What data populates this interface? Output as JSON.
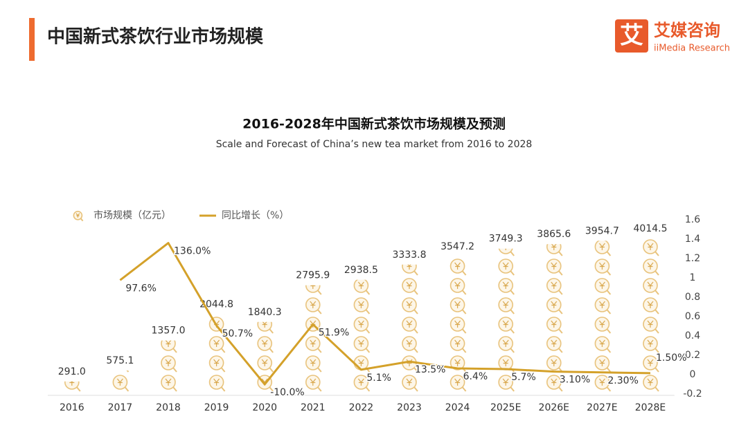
{
  "header": {
    "title": "中国新式茶饮行业市场规模",
    "logo_mark": "艾",
    "logo_name": "艾媒咨询",
    "logo_en": "iiMedia Research"
  },
  "chart_data": {
    "type": "bar_line",
    "title": "2016-2028年中国新式茶饮市场规模及预测",
    "subtitle": "Scale and Forecast of China’s new tea market from 2016 to 2028",
    "categories": [
      "2016",
      "2017",
      "2018",
      "2019",
      "2020",
      "2021",
      "2022",
      "2023",
      "2024",
      "2025E",
      "2026E",
      "2027E",
      "2028E"
    ],
    "series": [
      {
        "name": "市场规模（亿元）",
        "color": "#e8c27a",
        "type": "bar",
        "values": [
          291.0,
          575.1,
          1357.0,
          2044.8,
          1840.3,
          2795.9,
          2938.5,
          3333.8,
          3547.2,
          3749.3,
          3865.6,
          3954.7,
          4014.5
        ],
        "value_labels": [
          "291.0",
          "575.1",
          "1357.0",
          "2044.8",
          "1840.3",
          "2795.9",
          "2938.5",
          "3333.8",
          "3547.2",
          "3749.3",
          "3865.6",
          "3954.7",
          "4014.5"
        ]
      },
      {
        "name": "同比增长（%）",
        "color": "#d4a12a",
        "type": "line",
        "axis": "y2",
        "values": [
          null,
          0.976,
          1.36,
          0.507,
          -0.1,
          0.519,
          0.051,
          0.135,
          0.064,
          0.057,
          0.031,
          0.023,
          0.015
        ],
        "value_labels": [
          null,
          "97.6%",
          "136.0%",
          "50.7%",
          "-10.0%",
          "51.9%",
          "5.1%",
          "13.5%",
          "6.4%",
          "5.7%",
          "3.10%",
          "2.30%",
          "1.50%"
        ]
      }
    ],
    "ylim": [
      0,
      4500
    ],
    "y2lim": [
      -0.2,
      1.6
    ],
    "y2ticks": [
      1.6,
      1.4,
      1.2,
      1,
      0.8,
      0.6,
      0.4,
      0.2,
      0,
      -0.2
    ],
    "legend": "top-left"
  }
}
